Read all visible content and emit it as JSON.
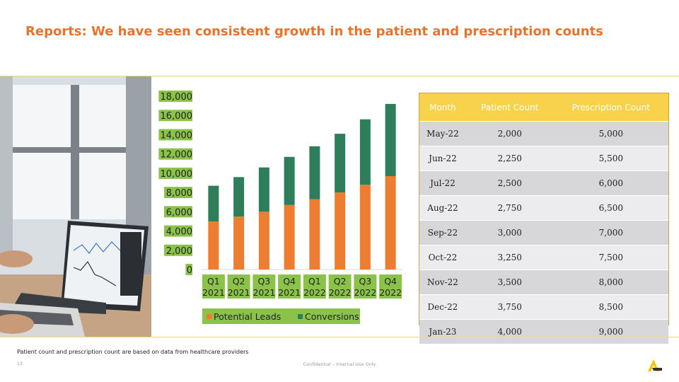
{
  "slide": {
    "title": "Reports: We have seen consistent growth in the patient and prescription counts",
    "footnote": "Patient count and prescription count are based on data from healthcare providers",
    "page_number": "13",
    "confidential": "Confidential – Internal Use Only",
    "accent_color": "#e8732b",
    "rule_color": "#f2e05a"
  },
  "chart_data": {
    "type": "bar",
    "stacked": true,
    "categories": [
      [
        "Q1",
        "2021"
      ],
      [
        "Q2",
        "2021"
      ],
      [
        "Q3",
        "2021"
      ],
      [
        "Q4",
        "2021"
      ],
      [
        "Q1",
        "2022"
      ],
      [
        "Q2",
        "2022"
      ],
      [
        "Q3",
        "2022"
      ],
      [
        "Q4",
        "2022"
      ]
    ],
    "series": [
      {
        "name": "Potential Leads",
        "color": "#ed7d31",
        "values": [
          5000,
          5500,
          6000,
          6700,
          7300,
          8000,
          8800,
          9700
        ]
      },
      {
        "name": "Conversions",
        "color": "#2e7d5b",
        "values": [
          3700,
          4100,
          4600,
          5000,
          5500,
          6100,
          6800,
          7500
        ]
      }
    ],
    "ylim": [
      0,
      18000
    ],
    "yticks": [
      "18,000",
      "16,000",
      "14,000",
      "12,000",
      "10,000",
      "8,000",
      "6,000",
      "4,000",
      "2,000",
      "0"
    ],
    "tick_label_bg": "#8bc34a",
    "legend_position": "bottom"
  },
  "table": {
    "headers": [
      "Month",
      "Patient Count",
      "Prescription Count"
    ],
    "rows": [
      [
        "May-22",
        "2,000",
        "5,000"
      ],
      [
        "Jun-22",
        "2,250",
        "5,500"
      ],
      [
        "Jul-22",
        "2,500",
        "6,000"
      ],
      [
        "Aug-22",
        "2,750",
        "6,500"
      ],
      [
        "Sep-22",
        "3,000",
        "7,000"
      ],
      [
        "Oct-22",
        "3,250",
        "7,500"
      ],
      [
        "Nov-22",
        "3,500",
        "8,000"
      ],
      [
        "Dec-22",
        "3,750",
        "8,500"
      ],
      [
        "Jan-23",
        "4,000",
        "9,000"
      ]
    ]
  }
}
